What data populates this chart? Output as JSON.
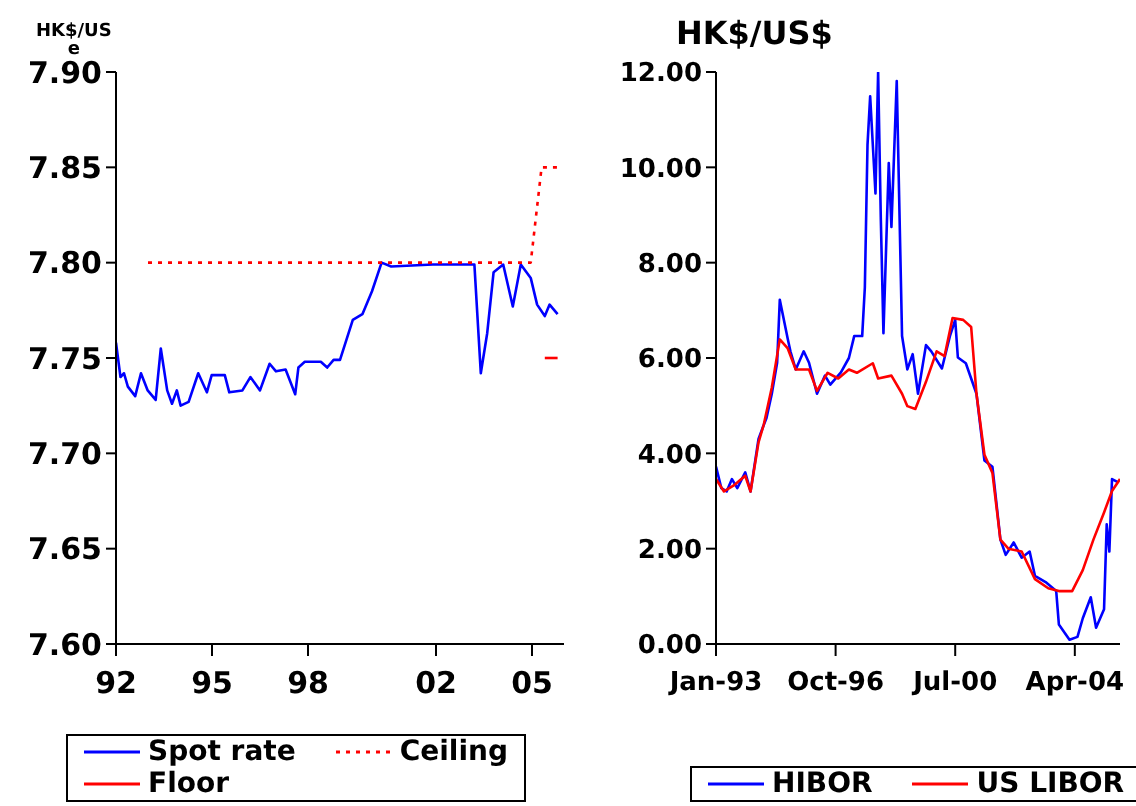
{
  "chart_data": [
    {
      "type": "line",
      "ylabel": "HK$/US e",
      "legend": "bottom",
      "xlim": [
        1992,
        2006
      ],
      "xticks": [
        {
          "value": 1992,
          "label": "92"
        },
        {
          "value": 1995,
          "label": "95"
        },
        {
          "value": 1998,
          "label": "98"
        },
        {
          "value": 2002,
          "label": "02"
        },
        {
          "value": 2005,
          "label": "05"
        }
      ],
      "ylim": [
        7.6,
        7.9
      ],
      "yticks": [
        {
          "value": 7.6,
          "label": "7.60"
        },
        {
          "value": 7.65,
          "label": "7.65"
        },
        {
          "value": 7.7,
          "label": "7.70"
        },
        {
          "value": 7.75,
          "label": "7.75"
        },
        {
          "value": 7.8,
          "label": "7.80"
        },
        {
          "value": 7.85,
          "label": "7.85"
        },
        {
          "value": 7.9,
          "label": "7.90"
        }
      ],
      "series": [
        {
          "name": "Spot rate",
          "color": "#0000ff",
          "x": [
            1992.0,
            1992.14,
            1992.25,
            1992.37,
            1992.6,
            1992.78,
            1992.99,
            1993.24,
            1993.4,
            1993.6,
            1993.75,
            1993.9,
            1994.02,
            1994.27,
            1994.57,
            1994.84,
            1994.99,
            1995.4,
            1995.54,
            1995.95,
            1996.2,
            1996.5,
            1996.8,
            1997.0,
            1997.3,
            1997.6,
            1997.7,
            1997.9,
            1998.4,
            1998.6,
            1998.8,
            1999.0,
            1999.4,
            1999.7,
            2000.0,
            2000.3,
            2000.6,
            2001.9,
            2003.2,
            2003.4,
            2003.6,
            2003.8,
            2004.1,
            2004.4,
            2004.65,
            2004.96,
            2005.16,
            2005.4,
            2005.55,
            2005.8
          ],
          "values": [
            7.758,
            7.74,
            7.742,
            7.735,
            7.73,
            7.742,
            7.733,
            7.728,
            7.755,
            7.733,
            7.726,
            7.733,
            7.725,
            7.727,
            7.742,
            7.732,
            7.741,
            7.741,
            7.732,
            7.733,
            7.74,
            7.733,
            7.747,
            7.743,
            7.744,
            7.731,
            7.745,
            7.748,
            7.748,
            7.745,
            7.749,
            7.749,
            7.77,
            7.773,
            7.785,
            7.8,
            7.798,
            7.799,
            7.799,
            7.742,
            7.763,
            7.795,
            7.799,
            7.777,
            7.799,
            7.792,
            7.778,
            7.772,
            7.778,
            7.773
          ]
        },
        {
          "name": "Ceiling",
          "color": "#ff0000",
          "line_style": "dotted",
          "x": [
            1993.0,
            2004.96,
            2005.3,
            2005.8
          ],
          "values": [
            7.8,
            7.8,
            7.85,
            7.85
          ]
        },
        {
          "name": "Floor",
          "color": "#ff0000",
          "x": [
            2005.4,
            2005.8
          ],
          "values": [
            7.75,
            7.75
          ]
        }
      ]
    },
    {
      "type": "line",
      "ylabel": "HK$/US$",
      "legend": "bottom",
      "xlim": [
        "1993-01",
        "2005-09"
      ],
      "xticks": [
        {
          "value": "1993-01",
          "label": "Jan-93"
        },
        {
          "value": "1996-10",
          "label": "Oct-96"
        },
        {
          "value": "2000-07",
          "label": "Jul-00"
        },
        {
          "value": "2004-04",
          "label": "Apr-04"
        }
      ],
      "ylim": [
        0,
        12
      ],
      "yticks": [
        {
          "value": 0,
          "label": "0.00"
        },
        {
          "value": 2,
          "label": "2.00"
        },
        {
          "value": 4,
          "label": "4.00"
        },
        {
          "value": 6,
          "label": "6.00"
        },
        {
          "value": 8,
          "label": "8.00"
        },
        {
          "value": 10,
          "label": "10.00"
        },
        {
          "value": 12,
          "label": "12.00"
        }
      ],
      "series": [
        {
          "name": "HIBOR",
          "color": "#0000ff",
          "x": [
            "1993-01",
            "1993-03",
            "1993-05",
            "1993-07",
            "1993-09",
            "1993-12",
            "1994-02",
            "1994-05",
            "1994-07",
            "1994-08",
            "1994-10",
            "1994-12",
            "1995-01",
            "1995-04",
            "1995-05",
            "1995-07",
            "1995-10",
            "1995-12",
            "1996-03",
            "1996-06",
            "1996-08",
            "1996-12",
            "1997-03",
            "1997-05",
            "1997-08",
            "1997-09",
            "1997-10",
            "1997-11",
            "1998-01",
            "1998-02",
            "1998-03",
            "1998-04",
            "1998-06",
            "1998-07",
            "1998-09",
            "1998-11",
            "1999-01",
            "1999-03",
            "1999-05",
            "1999-08",
            "1999-10",
            "2000-02",
            "2000-05",
            "2000-07",
            "2000-08",
            "2000-11",
            "2001-03",
            "2001-06",
            "2001-09",
            "2001-12",
            "2002-02",
            "2002-05",
            "2002-08",
            "2002-11",
            "2003-01",
            "2003-05",
            "2003-09",
            "2003-10",
            "2004-02",
            "2004-05",
            "2004-07",
            "2004-10",
            "2004-12",
            "2005-03",
            "2005-04",
            "2005-05",
            "2005-06",
            "2005-08"
          ],
          "values": [
            3.72,
            3.27,
            3.2,
            3.46,
            3.27,
            3.6,
            3.2,
            4.3,
            4.6,
            4.74,
            5.25,
            5.9,
            7.22,
            6.4,
            6.14,
            5.76,
            6.14,
            5.9,
            5.25,
            5.63,
            5.44,
            5.7,
            6.0,
            6.46,
            6.46,
            7.48,
            10.47,
            11.49,
            9.45,
            12.0,
            8.94,
            6.52,
            10.09,
            8.75,
            11.81,
            6.46,
            5.76,
            6.08,
            5.25,
            6.27,
            6.14,
            5.78,
            6.46,
            6.8,
            6.01,
            5.89,
            5.25,
            3.85,
            3.72,
            2.19,
            1.87,
            2.13,
            1.81,
            1.94,
            1.43,
            1.3,
            1.11,
            0.41,
            0.09,
            0.15,
            0.54,
            0.98,
            0.34,
            0.73,
            2.51,
            1.94,
            3.46,
            3.4
          ]
        },
        {
          "name": "US LIBOR",
          "color": "#ff0000",
          "x": [
            "1993-01",
            "1993-04",
            "1993-08",
            "1993-12",
            "1994-02",
            "1994-05",
            "1994-07",
            "1994-10",
            "1995-01",
            "1995-04",
            "1995-07",
            "1995-12",
            "1996-03",
            "1996-07",
            "1996-11",
            "1997-03",
            "1997-06",
            "1997-12",
            "1998-02",
            "1998-07",
            "1998-11",
            "1999-01",
            "1999-04",
            "1999-08",
            "1999-12",
            "2000-03",
            "2000-06",
            "2000-10",
            "2001-01",
            "2001-03",
            "2001-06",
            "2001-09",
            "2001-12",
            "2002-03",
            "2002-08",
            "2003-01",
            "2003-06",
            "2003-10",
            "2004-03",
            "2004-07",
            "2004-11",
            "2005-03",
            "2005-06",
            "2005-09"
          ],
          "values": [
            3.46,
            3.2,
            3.34,
            3.53,
            3.2,
            4.23,
            4.61,
            5.38,
            6.39,
            6.2,
            5.76,
            5.76,
            5.31,
            5.69,
            5.57,
            5.76,
            5.69,
            5.89,
            5.57,
            5.63,
            5.25,
            4.99,
            4.93,
            5.5,
            6.14,
            6.04,
            6.84,
            6.8,
            6.65,
            5.25,
            3.97,
            3.59,
            2.19,
            2.0,
            1.94,
            1.36,
            1.17,
            1.11,
            1.11,
            1.55,
            2.19,
            2.76,
            3.21,
            3.46
          ]
        }
      ]
    }
  ]
}
